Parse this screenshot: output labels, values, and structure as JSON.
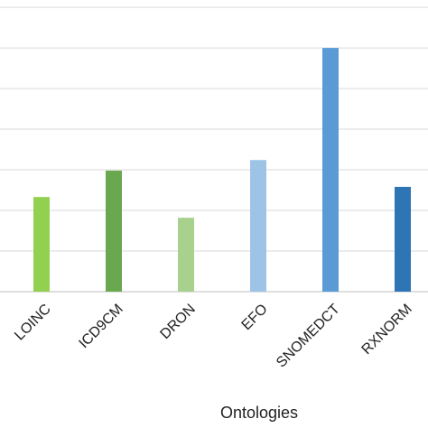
{
  "chart_data": {
    "type": "bar",
    "x_label": "Ontologies",
    "categories": [
      "LOINC",
      "ICD9CM",
      "DRON",
      "EFO",
      "SNOMEDCT",
      "RXNORM"
    ],
    "values": [
      2.33,
      2.98,
      1.82,
      3.24,
      6.0,
      2.58
    ],
    "colors": [
      "#92d050",
      "#6aa84f",
      "#a9d18e",
      "#9dc3e6",
      "#5b9bd5",
      "#2e75b6"
    ],
    "ylim": [
      0,
      7.18
    ],
    "yticks": [
      0,
      1,
      2,
      3,
      4,
      5,
      6,
      7
    ],
    "grid": true
  }
}
